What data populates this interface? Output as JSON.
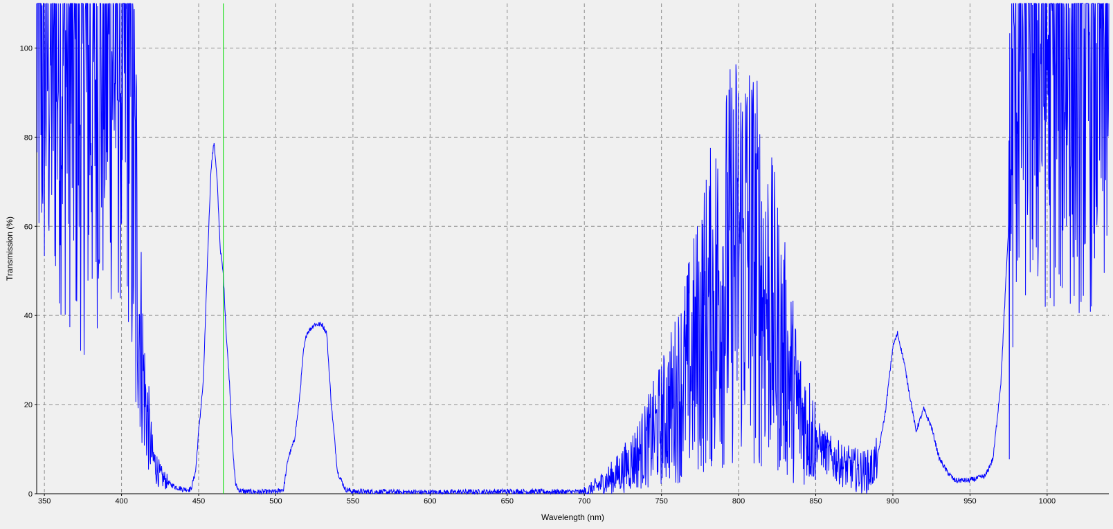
{
  "chart_data": {
    "type": "line",
    "title": "",
    "xlabel": "Wavelength (nm)",
    "ylabel": "Transmission (%)",
    "xlim": [
      345,
      1040
    ],
    "ylim": [
      0,
      110
    ],
    "x_ticks": [
      350,
      400,
      450,
      500,
      550,
      600,
      650,
      700,
      750,
      800,
      850,
      900,
      950,
      1000
    ],
    "y_ticks": [
      0,
      20,
      40,
      60,
      80,
      100
    ],
    "grid": true,
    "legend": "none",
    "marker_line": {
      "x": 466,
      "color": "#00dd00"
    },
    "series": [
      {
        "color": "#0000ff",
        "points": [
          [
            345,
            100
          ],
          [
            360,
            100
          ],
          [
            375,
            90
          ],
          [
            390,
            100
          ],
          [
            400,
            100
          ],
          [
            405,
            95
          ],
          [
            410,
            50
          ],
          [
            415,
            22
          ],
          [
            420,
            8
          ],
          [
            425,
            4
          ],
          [
            430,
            2.5
          ],
          [
            435,
            1.5
          ],
          [
            440,
            1
          ],
          [
            445,
            1
          ],
          [
            448,
            5
          ],
          [
            450,
            14
          ],
          [
            453,
            25
          ],
          [
            456,
            55
          ],
          [
            458,
            73
          ],
          [
            460,
            79
          ],
          [
            462,
            70
          ],
          [
            464,
            55
          ],
          [
            466,
            49
          ],
          [
            468,
            35
          ],
          [
            470,
            25
          ],
          [
            472,
            10
          ],
          [
            474,
            2
          ],
          [
            476,
            0.8
          ],
          [
            480,
            0.5
          ],
          [
            490,
            0.4
          ],
          [
            500,
            0.4
          ],
          [
            505,
            1
          ],
          [
            508,
            8
          ],
          [
            512,
            12
          ],
          [
            515,
            20
          ],
          [
            518,
            32
          ],
          [
            520,
            36
          ],
          [
            525,
            38
          ],
          [
            530,
            38
          ],
          [
            533,
            36
          ],
          [
            536,
            20
          ],
          [
            540,
            5
          ],
          [
            545,
            1
          ],
          [
            550,
            0.5
          ],
          [
            600,
            0.3
          ],
          [
            650,
            0.5
          ],
          [
            700,
            0.4
          ],
          [
            705,
            1
          ],
          [
            710,
            2
          ],
          [
            720,
            4
          ],
          [
            730,
            7
          ],
          [
            740,
            11
          ],
          [
            750,
            16
          ],
          [
            760,
            22
          ],
          [
            770,
            30
          ],
          [
            780,
            40
          ],
          [
            790,
            48
          ],
          [
            800,
            55
          ],
          [
            805,
            56
          ],
          [
            810,
            52
          ],
          [
            820,
            42
          ],
          [
            830,
            30
          ],
          [
            840,
            18
          ],
          [
            850,
            12
          ],
          [
            860,
            8
          ],
          [
            870,
            6
          ],
          [
            880,
            5
          ],
          [
            885,
            5
          ],
          [
            890,
            8
          ],
          [
            895,
            18
          ],
          [
            900,
            33
          ],
          [
            903,
            36
          ],
          [
            907,
            30
          ],
          [
            912,
            20
          ],
          [
            915,
            14
          ],
          [
            920,
            19
          ],
          [
            925,
            15
          ],
          [
            930,
            8
          ],
          [
            935,
            5
          ],
          [
            940,
            3
          ],
          [
            950,
            3
          ],
          [
            960,
            4
          ],
          [
            965,
            8
          ],
          [
            970,
            25
          ],
          [
            975,
            60
          ],
          [
            980,
            100
          ],
          [
            1040,
            100
          ]
        ]
      }
    ]
  }
}
